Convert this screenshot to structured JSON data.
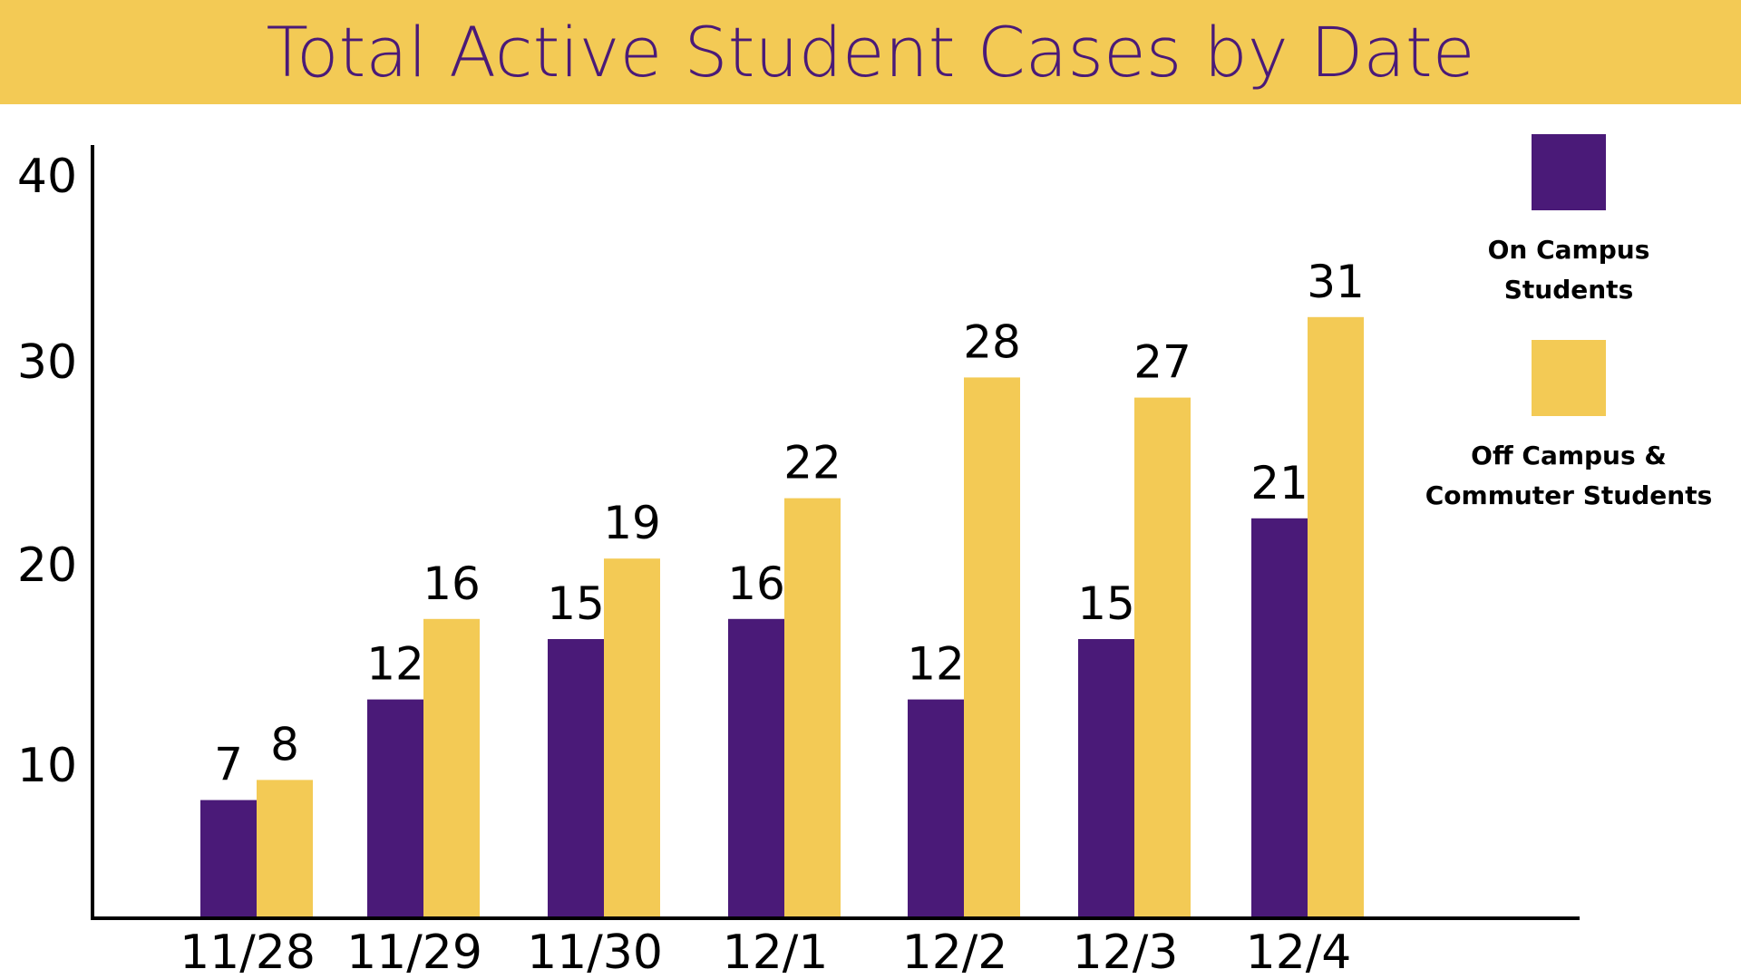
{
  "colors": {
    "title_band": "#f3ca55",
    "title_text": "#4a1a78",
    "on_campus": "#4a1a78",
    "off_campus": "#f3ca55"
  },
  "chart_data": {
    "type": "bar",
    "title": "Total Active Student Cases by Date",
    "categories": [
      "11/28",
      "11/29",
      "11/30",
      "12/1",
      "12/2",
      "12/3",
      "12/4"
    ],
    "series": [
      {
        "name": "On Campus Students",
        "values": [
          7,
          12,
          15,
          16,
          12,
          15,
          21
        ]
      },
      {
        "name": "Off Campus & Commuter Students",
        "values": [
          8,
          16,
          19,
          22,
          28,
          27,
          31
        ]
      }
    ],
    "yticks": [
      "10",
      "20",
      "30",
      "40"
    ],
    "xlabel": "",
    "ylabel": "",
    "grid": false,
    "legend_position": "right"
  },
  "legend": {
    "items": [
      {
        "label": "On Campus\nStudents"
      },
      {
        "label": "Off Campus &\nCommuter Students"
      }
    ]
  }
}
